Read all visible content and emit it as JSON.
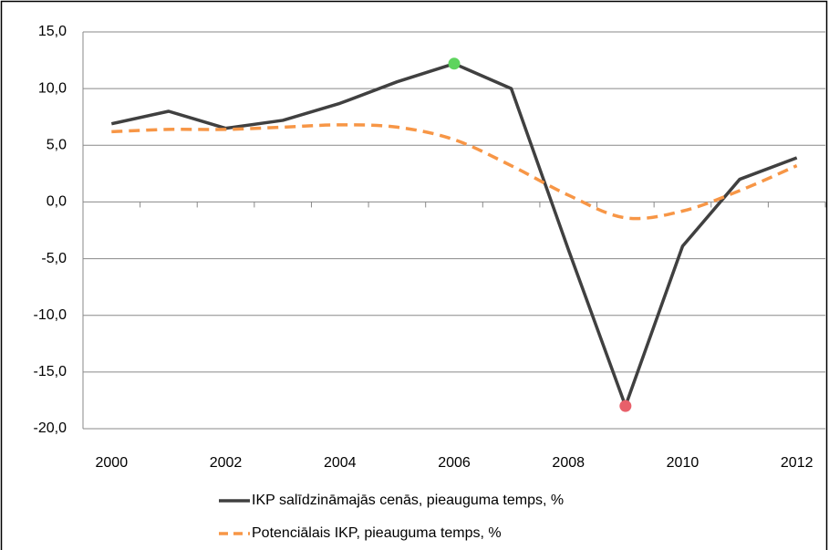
{
  "chart_data": {
    "type": "line",
    "categories": [
      "2000",
      null,
      "2002",
      null,
      "2004",
      null,
      "2006",
      null,
      "2008",
      null,
      "2010",
      null,
      "2012"
    ],
    "series": [
      {
        "name": "IKP salīdzināmajās cenās, pieauguma temps, %",
        "color": "#404040",
        "style": "solid",
        "values": [
          6.9,
          8.0,
          6.5,
          7.2,
          8.7,
          10.6,
          12.2,
          10.0,
          -4.2,
          -18.0,
          -3.9,
          2.0,
          3.9
        ],
        "highlight_points": [
          {
            "index": 6,
            "color": "#5ed45e"
          },
          {
            "index": 9,
            "color": "#e8606a"
          }
        ]
      },
      {
        "name": "Potenciālais IKP, pieauguma temps, %",
        "color": "#f79646",
        "style": "dashed",
        "smooth": true,
        "values": [
          6.2,
          6.4,
          6.4,
          6.6,
          6.8,
          6.6,
          5.5,
          3.2,
          0.6,
          -1.4,
          -0.8,
          1.0,
          3.2
        ]
      }
    ],
    "ylim": [
      -20,
      15
    ],
    "yticks": [
      {
        "value": -20,
        "label": "-20,0"
      },
      {
        "value": -15,
        "label": "-15,0"
      },
      {
        "value": -10,
        "label": "-10,0"
      },
      {
        "value": -5,
        "label": "-5,0"
      },
      {
        "value": 0,
        "label": "0,0"
      },
      {
        "value": 5,
        "label": "5,0"
      },
      {
        "value": 10,
        "label": "10,0"
      },
      {
        "value": 15,
        "label": "15,0"
      }
    ],
    "grid": true,
    "legend": "bottom"
  }
}
